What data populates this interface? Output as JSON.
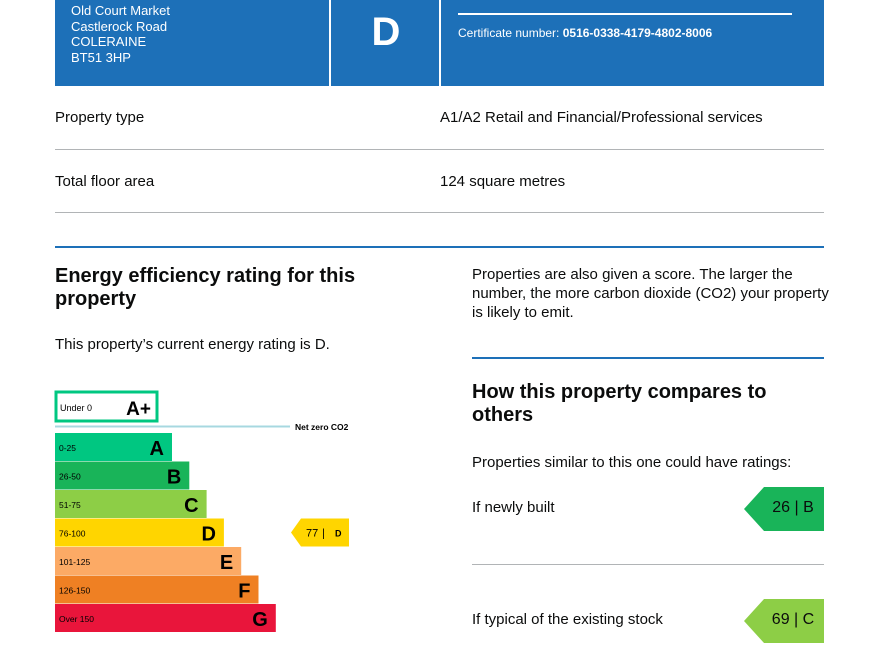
{
  "header": {
    "address_lines": [
      "Old Court Market",
      "Castlerock Road",
      "COLERAINE",
      "BT51 3HP"
    ],
    "energy_rating_letter": "D",
    "certificate_label": "Certificate number:",
    "certificate_number": "0516-0338-4179-4802-8006",
    "band_color": "#1d70b8"
  },
  "details": {
    "property_type_label": "Property type",
    "property_type_value": "A1/A2 Retail and Financial/Professional services",
    "floor_area_label": "Total floor area",
    "floor_area_value": "124 square metres"
  },
  "efficiency": {
    "heading": "Energy efficiency rating for this property",
    "current_text": "This property’s current energy rating is D.",
    "score_text": "Properties are also given a score. The larger the number, the more carbon dioxide (CO2) your property is likely to emit."
  },
  "chart_data": {
    "type": "bar",
    "bands": [
      {
        "letter": "A+",
        "range": "Under 0",
        "color": "#ffffff",
        "border": "#00c781"
      },
      {
        "letter": "A",
        "range": "0-25",
        "color": "#00c781"
      },
      {
        "letter": "B",
        "range": "26-50",
        "color": "#19b459"
      },
      {
        "letter": "C",
        "range": "51-75",
        "color": "#8dce46"
      },
      {
        "letter": "D",
        "range": "76-100",
        "color": "#ffd500"
      },
      {
        "letter": "E",
        "range": "101-125",
        "color": "#fcaa65"
      },
      {
        "letter": "F",
        "range": "126-150",
        "color": "#ef8023"
      },
      {
        "letter": "G",
        "range": "Over 150",
        "color": "#e9153b"
      }
    ],
    "net_zero_label": "Net zero CO2",
    "current": {
      "score": "77",
      "letter": "D",
      "color": "#ffd500"
    }
  },
  "compare": {
    "heading": "How this property compares to others",
    "intro": "Properties similar to this one could have ratings:",
    "items": [
      {
        "label": "If newly built",
        "score": "26",
        "letter": "B",
        "color": "#19b459"
      },
      {
        "label": "If typical of the existing stock",
        "score": "69",
        "letter": "C",
        "color": "#8dce46"
      }
    ]
  }
}
